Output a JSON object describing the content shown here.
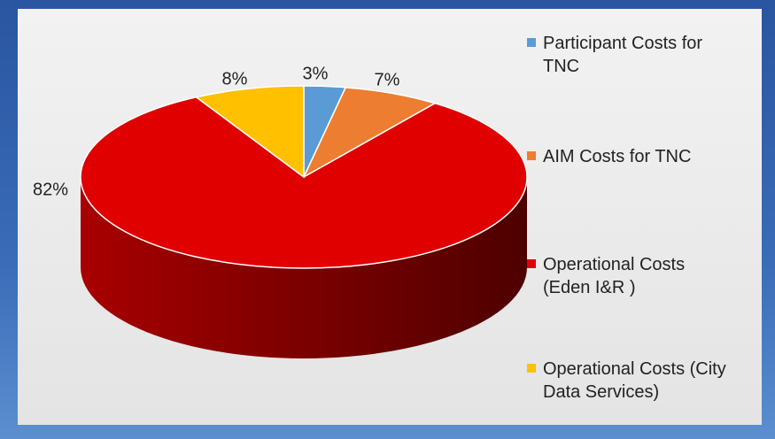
{
  "chart_data": {
    "type": "pie",
    "categories": [
      "Participant Costs for TNC",
      "AIM Costs for TNC",
      "Operational Costs (Eden I&R )",
      "Operational Costs (City Data Services)"
    ],
    "values": [
      3,
      7,
      82,
      8
    ],
    "value_labels": [
      "3%",
      "7%",
      "82%",
      "8%"
    ],
    "colors": [
      "#5b9bd5",
      "#ed7d31",
      "#e00000",
      "#ffc000"
    ],
    "legend": "right"
  }
}
